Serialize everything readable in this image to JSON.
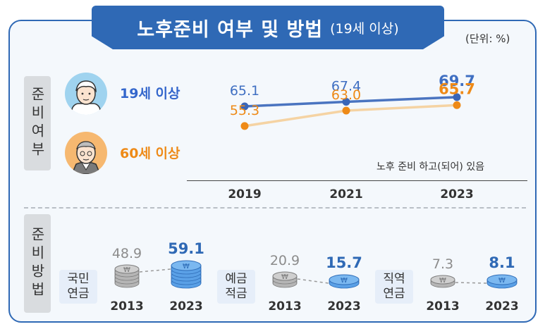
{
  "header": {
    "title": "노후준비 여부 및 방법",
    "subtitle": "(19세 이상)",
    "unit": "(단위: %)"
  },
  "sections": {
    "top_label": "준비여부",
    "bottom_label": "준비방법"
  },
  "groups": [
    {
      "label": "19세 이상",
      "avatar_icon": "young-person-icon",
      "color": "#3366cc"
    },
    {
      "label": "60세 이상",
      "avatar_icon": "elderly-person-icon",
      "color": "#ee8a17"
    }
  ],
  "note": "노후 준비 하고(되어) 있음",
  "methods": [
    {
      "label_line1": "국민",
      "label_line2": "연금"
    },
    {
      "label_line1": "예금",
      "label_line2": "적금"
    },
    {
      "label_line1": "직역",
      "label_line2": "연금"
    }
  ],
  "chart_data": [
    {
      "type": "line",
      "x": [
        "2019",
        "2021",
        "2023"
      ],
      "series": [
        {
          "name": "19세 이상",
          "values": [
            65.1,
            67.4,
            69.7
          ],
          "color": "#4a74c0"
        },
        {
          "name": "60세 이상",
          "values": [
            55.3,
            63.0,
            65.7
          ],
          "color": "#f5d3a3"
        }
      ]
    },
    {
      "type": "bar",
      "x": [
        "2013",
        "2023"
      ],
      "series": [
        {
          "name": "국민연금",
          "values": [
            48.9,
            59.1
          ]
        },
        {
          "name": "예금적금",
          "values": [
            20.9,
            15.7
          ]
        },
        {
          "name": "직역연금",
          "values": [
            7.3,
            8.1
          ]
        }
      ]
    }
  ],
  "colors": {
    "accent": "#2f69b5",
    "blue_series": "#4a74c0",
    "orange_label": "#ee8a17",
    "past_value": "#8c8c8c",
    "coin_blue": "#5aa0e6",
    "coin_gray": "#b0b0b0"
  }
}
